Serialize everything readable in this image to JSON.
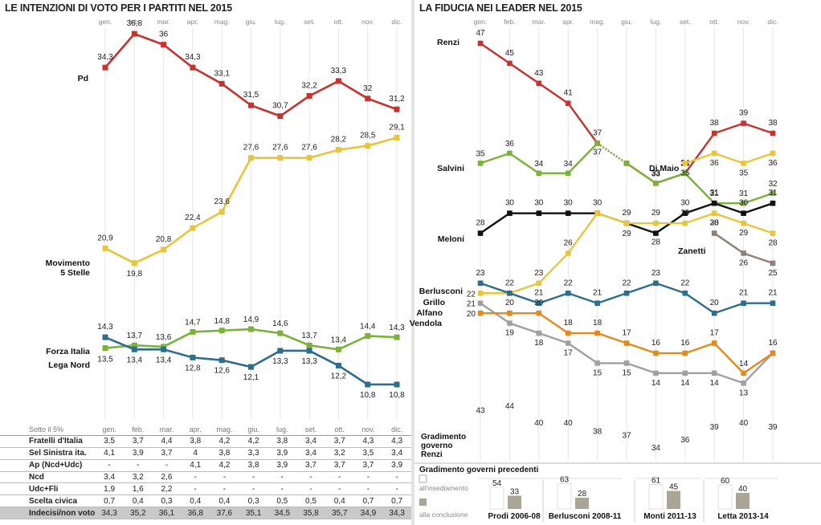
{
  "left": {
    "title": "LE INTENZIONI DI VOTO PER I PARTITI NEL 2015",
    "months": [
      "gen.",
      "feb.",
      "mar.",
      "apr.",
      "mag.",
      "giu.",
      "lug.",
      "set.",
      "ott.",
      "nov.",
      "dic."
    ],
    "table_header": "Sotto il 5%",
    "table": [
      {
        "name": "Fratelli d'Italia",
        "values": [
          "3,5",
          "3,7",
          "4,4",
          "3,8",
          "4,2",
          "4,2",
          "3,8",
          "3,4",
          "3,7",
          "4,3",
          "4,3"
        ]
      },
      {
        "name": "Sel Sinistra ita.",
        "values": [
          "4,1",
          "3,9",
          "3,7",
          "4",
          "3,8",
          "3,3",
          "3,9",
          "3,4",
          "3,2",
          "3,5",
          "3,4"
        ]
      },
      {
        "name": "Ap (Ncd+Udc)",
        "values": [
          "-",
          "-",
          "-",
          "4,1",
          "4,2",
          "3,8",
          "3,9",
          "3,7",
          "3,7",
          "3,7",
          "3,9"
        ]
      },
      {
        "name": "Ncd",
        "values": [
          "3,4",
          "3,2",
          "2,6",
          "-",
          "-",
          "-",
          "-",
          "-",
          "-",
          "-",
          "-"
        ]
      },
      {
        "name": "Udc+Fli",
        "values": [
          "1,9",
          "1,6",
          "2,2",
          "-",
          "-",
          "-",
          "-",
          "-",
          "-",
          "-",
          "-"
        ]
      },
      {
        "name": "Scelta civica",
        "values": [
          "0,7",
          "0,4",
          "0,3",
          "0,4",
          "0,4",
          "0,3",
          "0,5",
          "0,5",
          "0,4",
          "0,7",
          "0,7"
        ]
      },
      {
        "name": "Indecisi/non voto",
        "values": [
          "34,3",
          "35,2",
          "36,1",
          "36,8",
          "37,6",
          "35,1",
          "34,5",
          "35,8",
          "35,7",
          "34,9",
          "34,3"
        ]
      }
    ]
  },
  "chart_data": [
    {
      "type": "line",
      "title": "LE INTENZIONI DI VOTO PER I PARTITI NEL 2015",
      "categories": [
        "gen.",
        "feb.",
        "mar.",
        "apr.",
        "mag.",
        "giu.",
        "lug.",
        "set.",
        "ott.",
        "nov.",
        "dic."
      ],
      "series": [
        {
          "name": "Pd",
          "color": "#c8322e",
          "values": [
            34.3,
            36.8,
            36,
            34.3,
            33.1,
            31.5,
            30.7,
            32.2,
            33.3,
            32,
            31.2
          ],
          "labels": [
            "34,3",
            "36,8",
            "36",
            "34,3",
            "33,1",
            "31,5",
            "30,7",
            "32,2",
            "33,3",
            "32",
            "31,2"
          ]
        },
        {
          "name": "Movimento 5 Stelle",
          "color": "#e9c53e",
          "values": [
            20.9,
            19.8,
            20.8,
            22.4,
            23.6,
            27.6,
            27.6,
            27.6,
            28.2,
            28.5,
            29.1
          ],
          "labels": [
            "20,9",
            "19,8",
            "20,8",
            "22,4",
            "23,6",
            "27,6",
            "27,6",
            "27,6",
            "28,2",
            "28,5",
            "29,1"
          ]
        },
        {
          "name": "Forza Italia",
          "color": "#7bb23a",
          "values": [
            13.5,
            13.7,
            13.6,
            14.7,
            14.8,
            14.9,
            14.6,
            13.7,
            13.4,
            14.4,
            14.3
          ],
          "labels": [
            "13,5",
            "13,7",
            "13,6",
            "14,7",
            "14,8",
            "14,9",
            "14,6",
            "13,7",
            "13,4",
            "14,4",
            "14,3"
          ]
        },
        {
          "name": "Lega Nord",
          "color": "#2f6d8c",
          "values": [
            14.3,
            13.4,
            13.4,
            12.8,
            12.6,
            12.1,
            13.3,
            13.3,
            12.2,
            10.8,
            10.8
          ],
          "labels": [
            "14,3",
            "13,4",
            "13,4",
            "12,8",
            "12,6",
            "12,1",
            "13,3",
            "13,3",
            "12,2",
            "10,8",
            "10,8"
          ]
        }
      ]
    },
    {
      "type": "line",
      "title": "LA FIDUCIA NEI LEADER NEL 2015",
      "categories": [
        "gen.",
        "feb.",
        "mar.",
        "apr.",
        "mag.",
        "giu.",
        "lug.",
        "set.",
        "ott.",
        "nov.",
        "dic."
      ],
      "series": [
        {
          "name": "Renzi",
          "color": "#c8322e",
          "values": [
            47,
            45,
            43,
            41,
            37,
            35,
            33,
            34,
            38,
            39,
            38
          ]
        },
        {
          "name": "Salvini",
          "color": "#7bb23a",
          "values": [
            35,
            36,
            34,
            34,
            37,
            35,
            33,
            34,
            31,
            31,
            32
          ]
        },
        {
          "name": "Di Maio",
          "color": "#e9c53e",
          "values": [
            null,
            null,
            null,
            null,
            null,
            null,
            null,
            35,
            36,
            35,
            36
          ]
        },
        {
          "name": "Meloni",
          "color": "#111111",
          "values": [
            28,
            30,
            30,
            30,
            30,
            29,
            28,
            30,
            31,
            30,
            31
          ]
        },
        {
          "name": "Grillo",
          "color": "#e9c53e",
          "values": [
            22,
            22,
            23,
            26,
            30,
            29,
            29,
            29,
            30,
            29,
            28
          ]
        },
        {
          "name": "Zanetti",
          "color": "#8f7f78",
          "values": [
            null,
            null,
            null,
            null,
            null,
            null,
            null,
            null,
            28,
            26,
            25
          ]
        },
        {
          "name": "Berlusconi",
          "color": "#2f6d8c",
          "values": [
            23,
            22,
            21,
            22,
            21,
            22,
            23,
            22,
            20,
            21,
            21
          ]
        },
        {
          "name": "Alfano",
          "color": "#a0a0a0",
          "values": [
            21,
            19,
            18,
            17,
            15,
            15,
            14,
            14,
            14,
            13,
            16
          ]
        },
        {
          "name": "Vendola",
          "color": "#e38a1f",
          "values": [
            20,
            20,
            20,
            18,
            18,
            17,
            16,
            16,
            17,
            14,
            16
          ]
        }
      ]
    },
    {
      "type": "bar",
      "title": "Gradimento governo Renzi",
      "categories": [
        "gen.",
        "feb.",
        "mar.",
        "apr.",
        "mag.",
        "giu.",
        "lug.",
        "set.",
        "ott.",
        "nov.",
        "dic."
      ],
      "values": [
        43,
        44,
        40,
        40,
        38,
        37,
        34,
        36,
        39,
        40,
        39
      ]
    },
    {
      "type": "bar",
      "title": "Gradimento governi precedenti",
      "categories": [
        "Prodi 2006-08",
        "Berlusconi 2008-11",
        "Monti 2011-13",
        "Letta 2013-14"
      ],
      "series": [
        {
          "name": "all'insediamento",
          "color": "#ffffff",
          "values": [
            54,
            63,
            61,
            60
          ]
        },
        {
          "name": "alla conclusione",
          "color": "#aaa596",
          "values": [
            33,
            28,
            45,
            40
          ]
        }
      ]
    }
  ],
  "right": {
    "title": "LA FIDUCIA NEI LEADER NEL 2015",
    "gradimento_label": [
      "Gradimento",
      "governo",
      "Renzi"
    ],
    "prev_title": "Gradimento governi precedenti",
    "legend_start": "all'insediamento",
    "legend_end": "alla conclusione"
  }
}
